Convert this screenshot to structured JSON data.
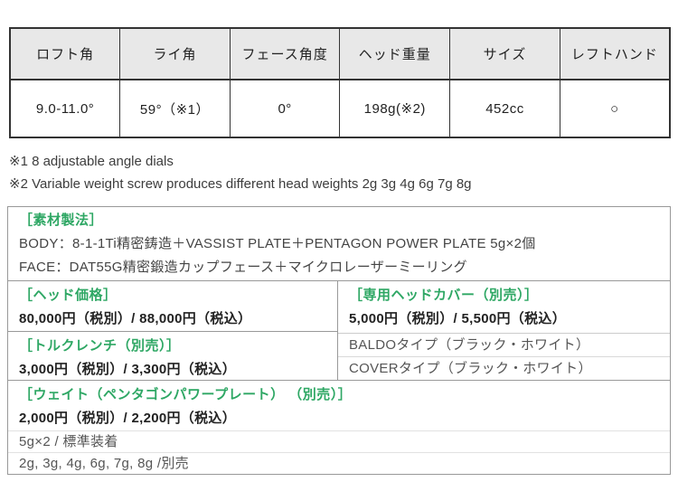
{
  "spec_table": {
    "headers": [
      "ロフト角",
      "ライ角",
      "フェース角度",
      "ヘッド重量",
      "サイズ",
      "レフトハンド"
    ],
    "values": [
      "9.0-11.0°",
      "59°（※1）",
      "0°",
      "198g(※2)",
      "452cc",
      "○"
    ]
  },
  "notes": {
    "note1": "※1 8 adjustable angle dials",
    "note2": "※2 Variable weight screw produces different head weights 2g 3g 4g 6g 7g 8g"
  },
  "material": {
    "label": "［素材製法］",
    "body": "BODY：8-1-1Ti精密鋳造＋VASSIST PLATE＋PENTAGON POWER PLATE 5g×2個",
    "face": "FACE：DAT55G精密鍛造カップフェース＋マイクロレーザーミーリング"
  },
  "head_price": {
    "label": "［ヘッド価格］",
    "price": "80,000円（税別）/ 88,000円（税込）"
  },
  "head_cover": {
    "label": "［専用ヘッドカバー（別売）］",
    "price": "5,000円（税別）/ 5,500円（税込）",
    "type1": "BALDOタイプ（ブラック・ホワイト）",
    "type2": "COVERタイプ（ブラック・ホワイト）"
  },
  "torque_wrench": {
    "label": "［トルクレンチ（別売）］",
    "price": "3,000円（税別）/ 3,300円（税込）"
  },
  "weight": {
    "label": "［ウェイト（ペンタゴンパワープレート） （別売）］",
    "price": "2,000円（税別）/ 2,200円（税込）",
    "standard": "5g×2 / 標準装着",
    "optional": "2g, 3g, 4g, 6g, 7g, 8g /別売"
  },
  "colors": {
    "accent_green": "#2ea764",
    "table_header_bg": "#e8e8e8",
    "table_border": "#333333",
    "box_border": "#999999",
    "light_divider": "#cccccc",
    "price_text": "#222222",
    "gray_text": "#555555"
  }
}
